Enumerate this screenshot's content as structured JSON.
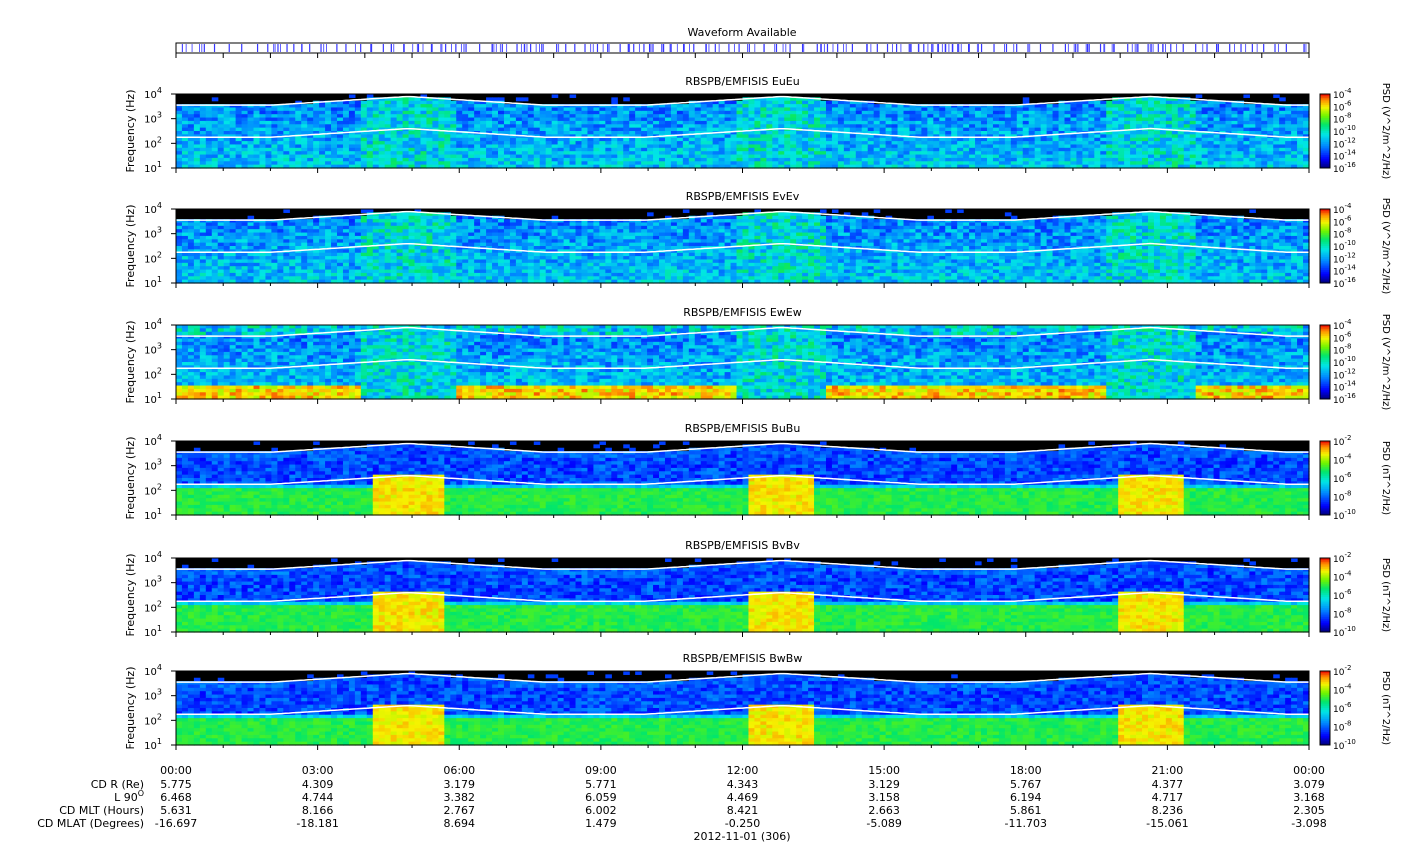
{
  "waveform": {
    "title": "Waveform Available",
    "marks": [
      0.025,
      0.034,
      0.047,
      0.058,
      0.072,
      0.081,
      0.09,
      0.098,
      0.104,
      0.111,
      0.118,
      0.128,
      0.142,
      0.15,
      0.163,
      0.172,
      0.183,
      0.19,
      0.201,
      0.214,
      0.226,
      0.238,
      0.247,
      0.256,
      0.268,
      0.279,
      0.288,
      0.301,
      0.313,
      0.324,
      0.336,
      0.344,
      0.352,
      0.361,
      0.372,
      0.381,
      0.392,
      0.404,
      0.413,
      0.421,
      0.43,
      0.437,
      0.448,
      0.457,
      0.468,
      0.476,
      0.488,
      0.497,
      0.506,
      0.519,
      0.53,
      0.542,
      0.553,
      0.566,
      0.575,
      0.584,
      0.597,
      0.61,
      0.619,
      0.628,
      0.636,
      0.648,
      0.66,
      0.668,
      0.679,
      0.69,
      0.7,
      0.711,
      0.722,
      0.733,
      0.742,
      0.752,
      0.763,
      0.774,
      0.785,
      0.796,
      0.806,
      0.816,
      0.828,
      0.84,
      0.849,
      0.858,
      0.867,
      0.878,
      0.889,
      0.9,
      0.91,
      0.92,
      0.93,
      0.94,
      0.95,
      0.96,
      0.97,
      0.98
    ]
  },
  "chart_data": [
    {
      "type": "heatmap",
      "title": "RBSPB/EMFISIS  EuEu",
      "ylabel": "Frequency (Hz)",
      "yscale": "log",
      "ylim": [
        10,
        10000
      ],
      "yticks": [
        "10",
        "10",
        "10",
        "10"
      ],
      "yexps": [
        "1",
        "2",
        "3",
        "4"
      ],
      "cbar_label": "PSD (V^2/m^2/Hz)",
      "cbar_ticks": [
        "10",
        "10",
        "10",
        "10",
        "10",
        "10",
        "10"
      ],
      "cbar_exps": [
        "-4",
        "-6",
        "-8",
        "-10",
        "-12",
        "-14",
        "-16"
      ],
      "cmap": "efield"
    },
    {
      "type": "heatmap",
      "title": "RBSPB/EMFISIS  EvEv",
      "ylabel": "Frequency (Hz)",
      "yscale": "log",
      "ylim": [
        10,
        10000
      ],
      "yticks": [
        "10",
        "10",
        "10",
        "10"
      ],
      "yexps": [
        "1",
        "2",
        "3",
        "4"
      ],
      "cbar_label": "PSD (V^2/m^2/Hz)",
      "cbar_ticks": [
        "10",
        "10",
        "10",
        "10",
        "10",
        "10",
        "10"
      ],
      "cbar_exps": [
        "-4",
        "-6",
        "-8",
        "-10",
        "-12",
        "-14",
        "-16"
      ],
      "cmap": "efield"
    },
    {
      "type": "heatmap",
      "title": "RBSPB/EMFISIS  EwEw",
      "ylabel": "Frequency (Hz)",
      "yscale": "log",
      "ylim": [
        10,
        10000
      ],
      "yticks": [
        "10",
        "10",
        "10",
        "10"
      ],
      "yexps": [
        "1",
        "2",
        "3",
        "4"
      ],
      "cbar_label": "PSD (V^2/m^2/Hz)",
      "cbar_ticks": [
        "10",
        "10",
        "10",
        "10",
        "10",
        "10",
        "10"
      ],
      "cbar_exps": [
        "-4",
        "-6",
        "-8",
        "-10",
        "-12",
        "-14",
        "-16"
      ],
      "cmap": "efield_w"
    },
    {
      "type": "heatmap",
      "title": "RBSPB/EMFISIS  BuBu",
      "ylabel": "Frequency (Hz)",
      "yscale": "log",
      "ylim": [
        10,
        10000
      ],
      "yticks": [
        "10",
        "10",
        "10",
        "10"
      ],
      "yexps": [
        "1",
        "2",
        "3",
        "4"
      ],
      "cbar_label": "PSD (nT^2/Hz)",
      "cbar_ticks": [
        "10",
        "10",
        "10",
        "10",
        "10"
      ],
      "cbar_exps": [
        "-2",
        "-4",
        "-6",
        "-8",
        "-10"
      ],
      "cmap": "bfield"
    },
    {
      "type": "heatmap",
      "title": "RBSPB/EMFISIS  BvBv",
      "ylabel": "Frequency (Hz)",
      "yscale": "log",
      "ylim": [
        10,
        10000
      ],
      "yticks": [
        "10",
        "10",
        "10",
        "10"
      ],
      "yexps": [
        "1",
        "2",
        "3",
        "4"
      ],
      "cbar_label": "PSD (nT^2/Hz)",
      "cbar_ticks": [
        "10",
        "10",
        "10",
        "10",
        "10"
      ],
      "cbar_exps": [
        "-2",
        "-4",
        "-6",
        "-8",
        "-10"
      ],
      "cmap": "bfield"
    },
    {
      "type": "heatmap",
      "title": "RBSPB/EMFISIS  BwBw",
      "ylabel": "Frequency (Hz)",
      "yscale": "log",
      "ylim": [
        10,
        10000
      ],
      "yticks": [
        "10",
        "10",
        "10",
        "10"
      ],
      "yexps": [
        "1",
        "2",
        "3",
        "4"
      ],
      "cbar_label": "PSD (nT^2/Hz)",
      "cbar_ticks": [
        "10",
        "10",
        "10",
        "10",
        "10"
      ],
      "cbar_exps": [
        "-2",
        "-4",
        "-6",
        "-8",
        "-10"
      ],
      "cmap": "bfield"
    }
  ],
  "time_axis": {
    "ticks": [
      "00:00",
      "03:00",
      "06:00",
      "09:00",
      "12:00",
      "15:00",
      "18:00",
      "21:00",
      "00:00"
    ],
    "xlabel": "2012-11-01 (306)"
  },
  "ephemeris": [
    {
      "label": "CD R (Re)",
      "values": [
        "5.775",
        "4.309",
        "3.179",
        "5.771",
        "4.343",
        "3.129",
        "5.767",
        "4.377",
        "3.079"
      ]
    },
    {
      "label": "L 90",
      "sup": "O",
      "values": [
        "6.468",
        "4.744",
        "3.382",
        "6.059",
        "4.469",
        "3.158",
        "6.194",
        "4.717",
        "3.168"
      ]
    },
    {
      "label": "CD MLT (Hours)",
      "values": [
        "5.631",
        "8.166",
        "2.767",
        "6.002",
        "8.421",
        "2.663",
        "5.861",
        "8.236",
        "2.305"
      ]
    },
    {
      "label": "CD MLAT (Degrees)",
      "values": [
        "-16.697",
        "-18.181",
        "8.694",
        "1.479",
        "-0.250",
        "-5.089",
        "-11.703",
        "-15.061",
        "-3.098"
      ]
    }
  ],
  "colors": {
    "black": "#000000",
    "white": "#ffffff",
    "waveform": "#3535ff"
  }
}
